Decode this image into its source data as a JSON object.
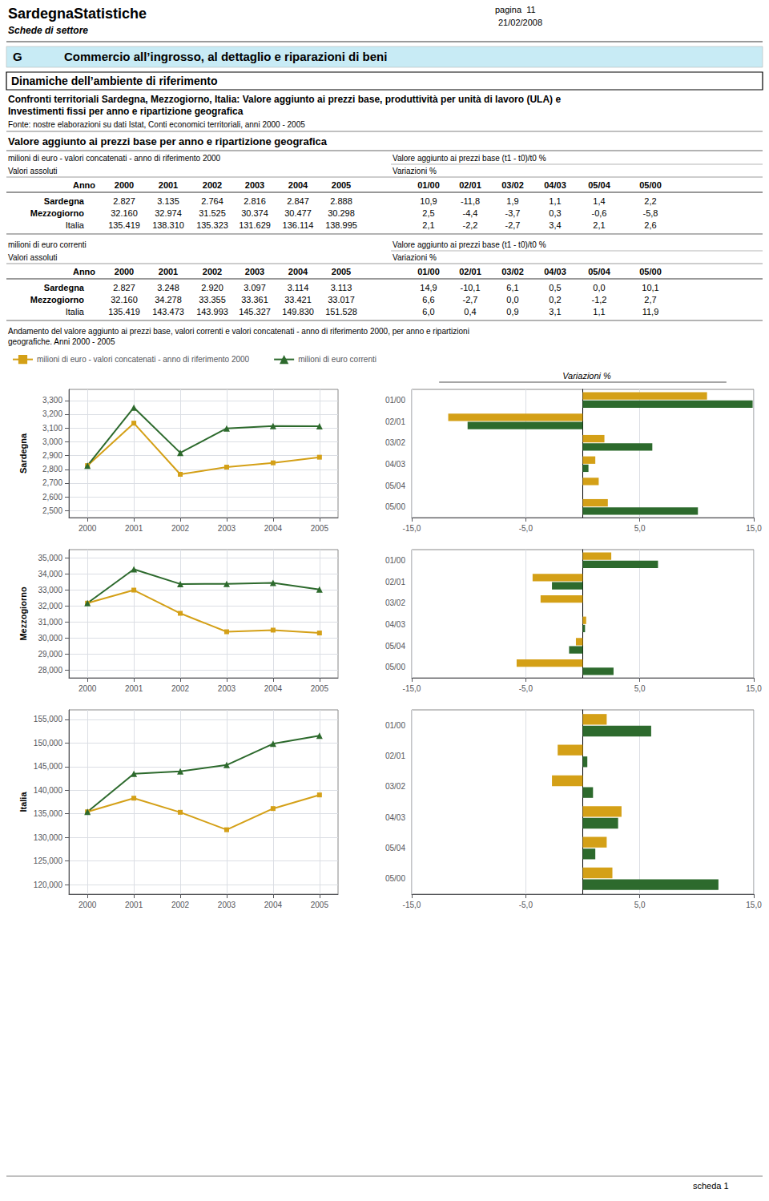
{
  "page": {
    "page_label": "pagina  11",
    "header_title": "SardegnaStatistiche",
    "date_label": "21/02/2008",
    "header_subtitle": "Schede di settore",
    "section_letter": "G",
    "section_text": "Commercio all’ingrosso, al dettaglio e riparazioni di beni",
    "section_color": "#C8EBF5",
    "box_title": "Dinamiche dell’ambiente di riferimento",
    "description": [
      "Confronti territoriali Sardegna, Mezzogiorno, Italia: Valore aggiunto ai prezzi base, produttività per unità di lavoro (ULA) e",
      "Investimenti fissi per anno e ripartizione geografica"
    ],
    "source": "Fonte: nostre elaborazioni su dati Istat, Conti economici territoriali, anni 2000 - 2005",
    "chart_title": [
      "Andamento del valore aggiunto ai prezzi base, valori correnti e valori concatenati - anno di riferimento 2000, per anno e ripartizioni",
      "geografiche. Anni 2000 - 2005"
    ],
    "footer": "scheda 1"
  },
  "tables": [
    {
      "title": "Valore aggiunto ai prezzi base per anno e ripartizione geografica",
      "left_headers": [
        "milioni di euro - valori concatenati - anno di riferimento 2000",
        "Valori assoluti"
      ],
      "right_headers": [
        "Valore aggiunto ai prezzi base (t1 - t0)/t0 %",
        "Variazioni %"
      ],
      "columns": [
        "Anno",
        "2000",
        "2001",
        "2002",
        "2003",
        "2004",
        "2005"
      ],
      "var_columns": [
        "01/00",
        "02/01",
        "03/02",
        "04/03",
        "05/04",
        "05/00"
      ],
      "rows": [
        {
          "name": "Sardegna",
          "bold": true,
          "values": [
            "2.827",
            "3.135",
            "2.764",
            "2.816",
            "2.847",
            "2.888"
          ],
          "vars": [
            "10,9",
            "-11,8",
            "1,9",
            "1,1",
            "1,4",
            "2,2"
          ]
        },
        {
          "name": "Mezzogiorno",
          "bold": true,
          "values": [
            "32.160",
            "32.974",
            "31.525",
            "30.374",
            "30.477",
            "30.298"
          ],
          "vars": [
            "2,5",
            "-4,4",
            "-3,7",
            "0,3",
            "-0,6",
            "-5,8"
          ]
        },
        {
          "name": "Italia",
          "bold": false,
          "values": [
            "135.419",
            "138.310",
            "135.323",
            "131.629",
            "136.114",
            "138.995"
          ],
          "vars": [
            "2,1",
            "-2,2",
            "-2,7",
            "3,4",
            "2,1",
            "2,6"
          ]
        }
      ]
    },
    {
      "left_headers": [
        "milioni di euro correnti",
        "Valori assoluti"
      ],
      "right_headers": [
        "Valore aggiunto ai prezzi base (t1 - t0)/t0 %",
        "Variazioni %"
      ],
      "columns": [
        "Anno",
        "2000",
        "2001",
        "2002",
        "2003",
        "2004",
        "2005"
      ],
      "var_columns": [
        "01/00",
        "02/01",
        "03/02",
        "04/03",
        "05/04",
        "05/00"
      ],
      "rows": [
        {
          "name": "Sardegna",
          "bold": true,
          "values": [
            "2.827",
            "3.248",
            "2.920",
            "3.097",
            "3.114",
            "3.113"
          ],
          "vars": [
            "14,9",
            "-10,1",
            "6,1",
            "0,5",
            "0,0",
            "10,1"
          ]
        },
        {
          "name": "Mezzogiorno",
          "bold": true,
          "values": [
            "32.160",
            "34.278",
            "33.355",
            "33.361",
            "33.421",
            "33.017"
          ],
          "vars": [
            "6,6",
            "-2,7",
            "0,0",
            "0,2",
            "-1,2",
            "2,7"
          ]
        },
        {
          "name": "Italia",
          "bold": false,
          "values": [
            "135.419",
            "143.473",
            "143.993",
            "145.327",
            "149.830",
            "151.528"
          ],
          "vars": [
            "6,0",
            "0,4",
            "0,9",
            "3,1",
            "1,1",
            "11,9"
          ]
        }
      ]
    }
  ],
  "chart_data": [
    {
      "type": "line",
      "ylabel": "Sardegna",
      "legend": "top",
      "grid": true,
      "x": [
        2000,
        2001,
        2002,
        2003,
        2004,
        2005
      ],
      "xlim": [
        1999.6,
        2005.4
      ],
      "xticks": [
        2000,
        2001,
        2002,
        2003,
        2004,
        2005
      ],
      "ylim": [
        2.45,
        3.38
      ],
      "yticks": [
        {
          "value": 2.5,
          "label": "2,500"
        },
        {
          "value": 2.6,
          "label": "2,600"
        },
        {
          "value": 2.7,
          "label": "2,700"
        },
        {
          "value": 2.8,
          "label": "2,800"
        },
        {
          "value": 2.9,
          "label": "2,900"
        },
        {
          "value": 3.0,
          "label": "3,000"
        },
        {
          "value": 3.1,
          "label": "3,100"
        },
        {
          "value": 3.2,
          "label": "3,200"
        },
        {
          "value": 3.3,
          "label": "3,300"
        }
      ],
      "series": [
        {
          "name": "milioni di euro - valori concatenati - anno di riferimento 2000",
          "color": "#D4A017",
          "marker": "square",
          "values": [
            2.827,
            3.135,
            2.764,
            2.816,
            2.847,
            2.888
          ]
        },
        {
          "name": "milioni di euro correnti",
          "color": "#2D6A2D",
          "marker": "triangle",
          "values": [
            2.827,
            3.248,
            2.92,
            3.097,
            3.114,
            3.113
          ]
        }
      ]
    },
    {
      "type": "bar",
      "orientation": "horizontal",
      "title": "Variazioni %",
      "grid": true,
      "categories": [
        "01/00",
        "02/01",
        "03/02",
        "04/03",
        "05/04",
        "05/00"
      ],
      "xlim": [
        -15,
        15
      ],
      "xticks": [
        {
          "value": -15,
          "label": "-15,0"
        },
        {
          "value": -5,
          "label": "-5,0"
        },
        {
          "value": 5,
          "label": "5,0"
        },
        {
          "value": 15,
          "label": "15,0"
        }
      ],
      "series": [
        {
          "name": "milioni di euro - valori concatenati - anno di riferimento 2000",
          "color": "#D4A017",
          "values": [
            10.9,
            -11.8,
            1.9,
            1.1,
            1.4,
            2.2
          ]
        },
        {
          "name": "milioni di euro correnti",
          "color": "#2D6A2D",
          "values": [
            14.9,
            -10.1,
            6.1,
            0.5,
            0.0,
            10.1
          ]
        }
      ]
    },
    {
      "type": "line",
      "ylabel": "Mezzogiorno",
      "grid": true,
      "x": [
        2000,
        2001,
        2002,
        2003,
        2004,
        2005
      ],
      "xlim": [
        1999.6,
        2005.4
      ],
      "xticks": [
        2000,
        2001,
        2002,
        2003,
        2004,
        2005
      ],
      "ylim": [
        27.5,
        35.5
      ],
      "yticks": [
        {
          "value": 28,
          "label": "28,000"
        },
        {
          "value": 29,
          "label": "29,000"
        },
        {
          "value": 30,
          "label": "30,000"
        },
        {
          "value": 31,
          "label": "31,000"
        },
        {
          "value": 32,
          "label": "32,000"
        },
        {
          "value": 33,
          "label": "33,000"
        },
        {
          "value": 34,
          "label": "34,000"
        },
        {
          "value": 35,
          "label": "35,000"
        }
      ],
      "series": [
        {
          "name": "milioni di euro - valori concatenati - anno di riferimento 2000",
          "color": "#D4A017",
          "marker": "square",
          "values": [
            32.16,
            32.974,
            31.525,
            30.374,
            30.477,
            30.298
          ]
        },
        {
          "name": "milioni di euro correnti",
          "color": "#2D6A2D",
          "marker": "triangle",
          "values": [
            32.16,
            34.278,
            33.355,
            33.361,
            33.421,
            33.017
          ]
        }
      ]
    },
    {
      "type": "bar",
      "orientation": "horizontal",
      "grid": true,
      "categories": [
        "01/00",
        "02/01",
        "03/02",
        "04/03",
        "05/04",
        "05/00"
      ],
      "xlim": [
        -15,
        15
      ],
      "xticks": [
        {
          "value": -15,
          "label": "-15,0"
        },
        {
          "value": -5,
          "label": "-5,0"
        },
        {
          "value": 5,
          "label": "5,0"
        },
        {
          "value": 15,
          "label": "15,0"
        }
      ],
      "series": [
        {
          "name": "milioni di euro - valori concatenati - anno di riferimento 2000",
          "color": "#D4A017",
          "values": [
            2.5,
            -4.4,
            -3.7,
            0.3,
            -0.6,
            -5.8
          ]
        },
        {
          "name": "milioni di euro correnti",
          "color": "#2D6A2D",
          "values": [
            6.6,
            -2.7,
            0.0,
            0.2,
            -1.2,
            2.7
          ]
        }
      ]
    },
    {
      "type": "line",
      "ylabel": "Italia",
      "grid": true,
      "x": [
        2000,
        2001,
        2002,
        2003,
        2004,
        2005
      ],
      "xlim": [
        1999.6,
        2005.4
      ],
      "xticks": [
        2000,
        2001,
        2002,
        2003,
        2004,
        2005
      ],
      "ylim": [
        118.0,
        157.0
      ],
      "yticks": [
        {
          "value": 120,
          "label": "120,000"
        },
        {
          "value": 125,
          "label": "125,000"
        },
        {
          "value": 130,
          "label": "130,000"
        },
        {
          "value": 135,
          "label": "135,000"
        },
        {
          "value": 140,
          "label": "140,000"
        },
        {
          "value": 145,
          "label": "145,000"
        },
        {
          "value": 150,
          "label": "150,000"
        },
        {
          "value": 155,
          "label": "155,000"
        }
      ],
      "series": [
        {
          "name": "milioni di euro - valori concatenati - anno di riferimento 2000",
          "color": "#D4A017",
          "marker": "square",
          "values": [
            135.419,
            138.31,
            135.323,
            131.629,
            136.114,
            138.995
          ]
        },
        {
          "name": "milioni di euro correnti",
          "color": "#2D6A2D",
          "marker": "triangle",
          "values": [
            135.419,
            143.473,
            143.993,
            145.327,
            149.83,
            151.528
          ]
        }
      ]
    },
    {
      "type": "bar",
      "orientation": "horizontal",
      "grid": true,
      "categories": [
        "01/00",
        "02/01",
        "03/02",
        "04/03",
        "05/04",
        "05/00"
      ],
      "xlim": [
        -15,
        15
      ],
      "xticks": [
        {
          "value": -15,
          "label": "-15,0"
        },
        {
          "value": -5,
          "label": "-5,0"
        },
        {
          "value": 5,
          "label": "5,0"
        },
        {
          "value": 15,
          "label": "15,0"
        }
      ],
      "series": [
        {
          "name": "milioni di euro - valori concatenati - anno di riferimento 2000",
          "color": "#D4A017",
          "values": [
            2.1,
            -2.2,
            -2.7,
            3.4,
            2.1,
            2.6
          ]
        },
        {
          "name": "milioni di euro correnti",
          "color": "#2D6A2D",
          "values": [
            6.0,
            0.4,
            0.9,
            3.1,
            1.1,
            11.9
          ]
        }
      ]
    }
  ]
}
